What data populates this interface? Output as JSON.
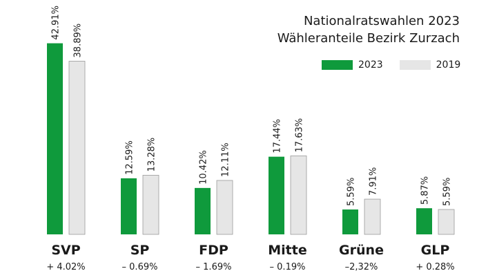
{
  "colors": {
    "series_2023": "#0f9a3c",
    "series_2019": "#e6e6e6",
    "series_2019_border": "#9a9a9a",
    "text": "#1a1a1a"
  },
  "title": {
    "line1": "Nationalratswahlen 2023",
    "line2": "Wähleranteile Bezirk Zurzach"
  },
  "legend": {
    "placement": "top-right",
    "items": [
      "2023",
      "2019"
    ]
  },
  "chart_data": {
    "type": "bar",
    "categories": [
      "SVP",
      "SP",
      "FDP",
      "Mitte",
      "Grüne",
      "GLP"
    ],
    "changes": [
      "+ 4.02%",
      "– 0.69%",
      "– 1.69%",
      "– 0.19%",
      "–2,32%",
      "+ 0.28%"
    ],
    "series": [
      {
        "name": "2023",
        "values": [
          42.91,
          12.59,
          10.42,
          17.44,
          5.59,
          5.87
        ],
        "labels": [
          "42.91%",
          "12.59%",
          "10.42%",
          "17.44%",
          "5.59%",
          "5.87%"
        ]
      },
      {
        "name": "2019",
        "values": [
          38.89,
          13.28,
          12.11,
          17.63,
          7.91,
          5.59
        ],
        "labels": [
          "38.89%",
          "13.28%",
          "12.11%",
          "17.63%",
          "7.91%",
          "5.59%"
        ]
      }
    ],
    "ylim": [
      0,
      43
    ],
    "grid": false
  }
}
